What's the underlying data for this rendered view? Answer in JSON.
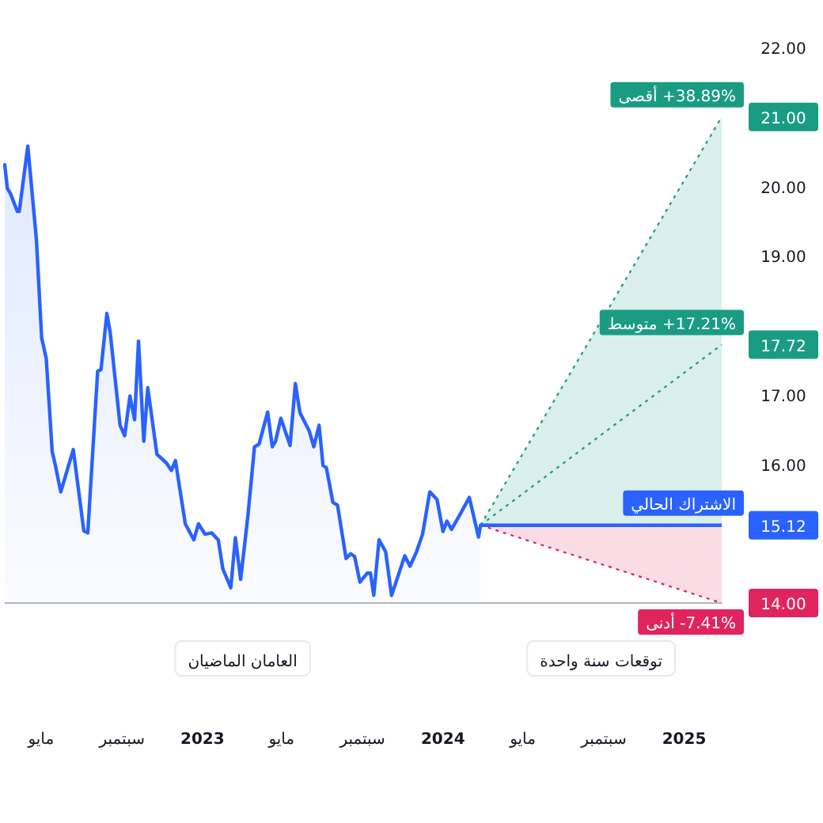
{
  "chart_data": {
    "type": "area",
    "xlim": [
      "2022-03-07",
      "2025-02-27"
    ],
    "ylim": [
      14,
      22
    ],
    "xticks": [
      {
        "value": "2022-05",
        "label": "مايو"
      },
      {
        "value": "2022-09",
        "label": "سبتمبر"
      },
      {
        "value": "2023",
        "label": "2023"
      },
      {
        "value": "2023-05",
        "label": "مايو"
      },
      {
        "value": "2023-09",
        "label": "سبتمبر"
      },
      {
        "value": "2024",
        "label": "2024"
      },
      {
        "value": "2024-05",
        "label": "مايو"
      },
      {
        "value": "2024-09",
        "label": "سبتمبر"
      },
      {
        "value": "2025",
        "label": "2025"
      }
    ],
    "yticks": [
      {
        "value": 14,
        "label": "14.00"
      },
      {
        "value": 15.12,
        "label": "15.12"
      },
      {
        "value": 16,
        "label": "16.00"
      },
      {
        "value": 17,
        "label": "17.00"
      },
      {
        "value": 17.72,
        "label": "17.72"
      },
      {
        "value": 19,
        "label": "19.00"
      },
      {
        "value": 20,
        "label": "20.00"
      },
      {
        "value": 21,
        "label": "21.00"
      },
      {
        "value": 22,
        "label": "22.00"
      }
    ],
    "legend": "right",
    "series": [
      {
        "type": "area",
        "color": "#2962ff",
        "x": [
          "2022-03-07",
          "2022-03-11",
          "2022-03-16",
          "2022-03-26",
          "2022-03-29",
          "2022-04-11",
          "2022-04-24",
          "2022-05-02",
          "2022-05-09",
          "2022-05-18",
          "2022-05-22",
          "2022-05-31",
          "2022-06-19",
          "2022-07-05",
          "2022-07-11",
          "2022-07-26",
          "2022-07-31",
          "2022-08-09",
          "2022-08-14",
          "2022-08-29",
          "2022-09-05",
          "2022-09-13",
          "2022-09-20",
          "2022-09-26",
          "2022-10-04",
          "2022-10-10",
          "2022-10-24",
          "2022-11-07",
          "2022-11-15",
          "2022-11-21",
          "2022-12-06",
          "2022-12-19",
          "2022-12-26",
          "2023-01-05",
          "2023-01-15",
          "2023-01-25",
          "2023-02-01",
          "2023-02-13",
          "2023-02-20",
          "2023-02-28",
          "2023-03-11",
          "2023-03-21",
          "2023-03-28",
          "2023-04-10",
          "2023-04-17",
          "2023-04-22",
          "2023-04-30",
          "2023-05-14",
          "2023-05-22",
          "2023-05-29",
          "2023-06-12",
          "2023-06-19",
          "2023-06-27",
          "2023-07-03",
          "2023-07-08",
          "2023-07-18",
          "2023-07-25",
          "2023-08-07",
          "2023-08-14",
          "2023-08-20",
          "2023-08-28",
          "2023-09-08",
          "2023-09-13",
          "2023-09-18",
          "2023-09-26",
          "2023-10-06",
          "2023-10-15",
          "2023-11-04",
          "2023-11-12",
          "2023-11-22",
          "2023-12-01",
          "2023-12-12",
          "2023-12-23",
          "2024-01-01",
          "2024-01-07",
          "2024-01-14",
          "2024-01-26",
          "2024-02-10",
          "2024-02-24",
          "2024-02-27"
        ],
        "values": [
          20.31,
          19.97,
          19.89,
          19.64,
          19.64,
          20.58,
          19.24,
          17.82,
          17.52,
          16.18,
          16.02,
          15.6,
          16.21,
          15.04,
          15.01,
          17.34,
          17.36,
          18.17,
          17.9,
          16.56,
          16.41,
          16.98,
          16.64,
          17.77,
          16.33,
          17.1,
          16.14,
          16.02,
          15.91,
          16.05,
          15.14,
          14.91,
          15.14,
          14.99,
          15.01,
          14.91,
          14.49,
          14.22,
          14.94,
          14.34,
          15.26,
          16.25,
          16.29,
          16.75,
          16.25,
          16.33,
          16.66,
          16.27,
          17.16,
          16.74,
          16.48,
          16.25,
          16.56,
          15.98,
          15.95,
          15.45,
          15.41,
          14.64,
          14.71,
          14.67,
          14.3,
          14.43,
          14.43,
          14.11,
          14.91,
          14.74,
          14.11,
          14.68,
          14.53,
          14.74,
          14.99,
          15.6,
          15.49,
          15.03,
          15.18,
          15.06,
          15.26,
          15.52,
          14.95,
          15.12
        ]
      },
      {
        "type": "line",
        "name": "+38.89% أقصى",
        "color": "#1a9c83",
        "line_style": "dotted",
        "x": [
          "2024-02-27",
          "2025-02-27"
        ],
        "values": [
          15.12,
          21.0
        ]
      },
      {
        "type": "line",
        "name": "+17.21% متوسط",
        "color": "#1a9c83",
        "line_style": "dotted",
        "x": [
          "2024-02-27",
          "2025-02-27"
        ],
        "values": [
          15.12,
          17.72
        ]
      },
      {
        "type": "line",
        "name": "-7.41% أدنى",
        "color": "#e0245e",
        "line_style": "dotted",
        "x": [
          "2024-02-27",
          "2025-02-27"
        ],
        "values": [
          15.12,
          14.0
        ]
      },
      {
        "type": "line",
        "name": "الاشتراك الحالي",
        "color": "#2962ff",
        "line_style": "solid",
        "x": [
          "2024-02-27",
          "2025-02-27"
        ],
        "values": [
          15.12,
          15.12
        ],
        "lower": [
          15.12,
          14.0
        ],
        "upper": [
          15.12,
          21.0
        ]
      }
    ],
    "annotations": [
      "العامان الماضيان",
      "توقعات سنة واحدة"
    ]
  }
}
